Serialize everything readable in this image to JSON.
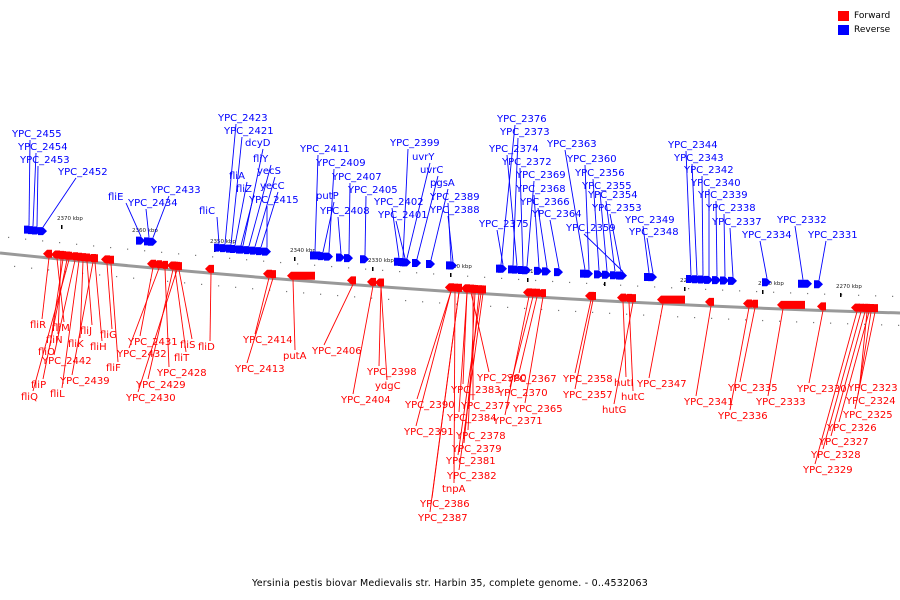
{
  "legend": {
    "items": [
      {
        "label": "Forward",
        "color": "#ff0000"
      },
      {
        "label": "Reverse",
        "color": "#0000ff"
      }
    ]
  },
  "caption": "Yersinia pestis biovar Medievalis str. Harbin 35, complete genome. - 0..4532063",
  "colors": {
    "forward": "#ff0000",
    "reverse": "#0000ff",
    "backbone": "#999999"
  },
  "ticks": [
    {
      "label": "2370 kbp"
    },
    {
      "label": "2360 kbp"
    },
    {
      "label": "2350 kbp"
    },
    {
      "label": "2340 kbp"
    },
    {
      "label": "2330 kbp"
    },
    {
      "label": "2320 kbp"
    },
    {
      "label": "2310 kbp"
    },
    {
      "label": "2300 kbp"
    },
    {
      "label": "2290 kbp"
    },
    {
      "label": "2280 kbp"
    },
    {
      "label": "2270 kbp"
    }
  ],
  "reverse_genes": [
    "YPC_2455",
    "YPC_2454",
    "YPC_2453",
    "YPC_2452",
    "fliE",
    "YPC_2434",
    "YPC_2433",
    "fliC",
    "YPC_2423",
    "YPC_2421",
    "dcyD",
    "fliY",
    "fliA",
    "fliZ",
    "yecS",
    "yecC",
    "YPC_2415",
    "YPC_2411",
    "YPC_2409",
    "putP",
    "YPC_2408",
    "YPC_2407",
    "YPC_2405",
    "YPC_2399",
    "uvrY",
    "uvrC",
    "YPC_2402",
    "YPC_2401",
    "pgsA",
    "YPC_2389",
    "YPC_2388",
    "YPC_2376",
    "YPC_2373",
    "YPC_2374",
    "YPC_2372",
    "YPC_2375",
    "YPC_2369",
    "YPC_2368",
    "YPC_2366",
    "YPC_2364",
    "YPC_2363",
    "YPC_2360",
    "YPC_2356",
    "YPC_2355",
    "YPC_2354",
    "YPC_2353",
    "YPC_2359",
    "YPC_2349",
    "YPC_2348",
    "YPC_2344",
    "YPC_2343",
    "YPC_2342",
    "YPC_2340",
    "YPC_2339",
    "YPC_2338",
    "YPC_2337",
    "YPC_2334",
    "YPC_2332",
    "YPC_2331"
  ],
  "forward_genes": [
    "fliR",
    "fliM",
    "fliN",
    "fliO",
    "fliP",
    "fliQ",
    "fliJ",
    "fliK",
    "YPC_2442",
    "fliL",
    "fliH",
    "fliG",
    "YPC_2439",
    "fliF",
    "YPC_2431",
    "YPC_2432",
    "fliS",
    "fliT",
    "YPC_2428",
    "YPC_2429",
    "YPC_2430",
    "fliD",
    "YPC_2414",
    "YPC_2413",
    "putA",
    "YPC_2406",
    "YPC_2404",
    "YPC_2398",
    "ydgC",
    "YPC_2390",
    "YPC_2391",
    "YPC_2380",
    "YPC_2383",
    "YPC_2384",
    "YPC_2377",
    "YPC_2378",
    "YPC_2379",
    "YPC_2381",
    "YPC_2382",
    "tnpA",
    "YPC_2386",
    "YPC_2387",
    "YPC_2367",
    "YPC_2370",
    "YPC_2365",
    "YPC_2371",
    "YPC_2358",
    "YPC_2357",
    "hutI",
    "hutC",
    "hutG",
    "YPC_2347",
    "YPC_2341",
    "YPC_2335",
    "YPC_2336",
    "YPC_2333",
    "YPC_2330",
    "YPC_2323",
    "YPC_2324",
    "YPC_2325",
    "YPC_2326",
    "YPC_2327",
    "YPC_2328",
    "YPC_2329"
  ]
}
